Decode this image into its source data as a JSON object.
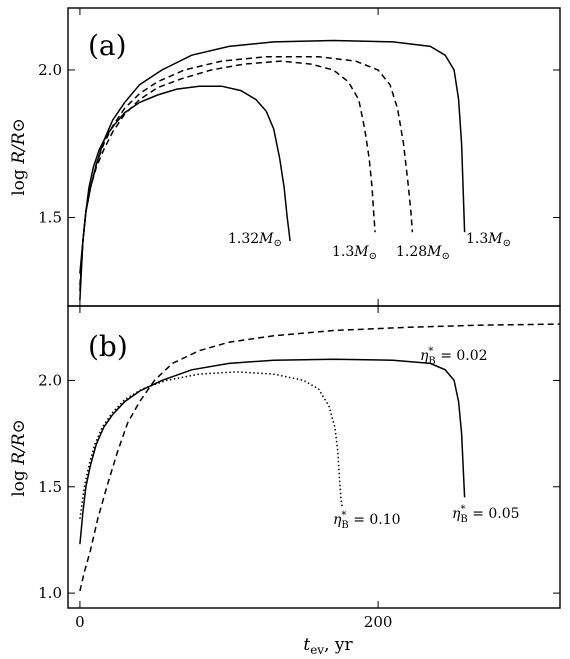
{
  "chart_data": [
    {
      "panel": "(a)",
      "type": "line",
      "ylabel": "log R/R⊙",
      "ylim": [
        1.2,
        2.21
      ],
      "yticks": [
        1.5,
        2.0
      ],
      "ytick_labels": [
        "1.5",
        "2.0"
      ],
      "xlim": [
        -8,
        322
      ],
      "series": [
        {
          "name": "1.32M⊙",
          "style": "solid",
          "points": [
            [
              0,
              1.22
            ],
            [
              1,
              1.32
            ],
            [
              2,
              1.42
            ],
            [
              4,
              1.52
            ],
            [
              6,
              1.6
            ],
            [
              9,
              1.67
            ],
            [
              13,
              1.73
            ],
            [
              18,
              1.78
            ],
            [
              24,
              1.82
            ],
            [
              30,
              1.855
            ],
            [
              40,
              1.89
            ],
            [
              52,
              1.915
            ],
            [
              65,
              1.935
            ],
            [
              80,
              1.945
            ],
            [
              95,
              1.945
            ],
            [
              108,
              1.93
            ],
            [
              118,
              1.9
            ],
            [
              125,
              1.86
            ],
            [
              130,
              1.8
            ],
            [
              134,
              1.7
            ],
            [
              137,
              1.6
            ],
            [
              139,
              1.5
            ],
            [
              140,
              1.46
            ],
            [
              141,
              1.42
            ]
          ]
        },
        {
          "name": "1.3M⊙",
          "style": "dashed",
          "points": [
            [
              0,
              1.25
            ],
            [
              2,
              1.42
            ],
            [
              4,
              1.52
            ],
            [
              7,
              1.6
            ],
            [
              11,
              1.67
            ],
            [
              16,
              1.73
            ],
            [
              22,
              1.79
            ],
            [
              30,
              1.85
            ],
            [
              40,
              1.9
            ],
            [
              52,
              1.94
            ],
            [
              68,
              1.97
            ],
            [
              88,
              2.0
            ],
            [
              110,
              2.02
            ],
            [
              135,
              2.03
            ],
            [
              155,
              2.02
            ],
            [
              170,
              2.0
            ],
            [
              180,
              1.96
            ],
            [
              187,
              1.9
            ],
            [
              191,
              1.8
            ],
            [
              194,
              1.7
            ],
            [
              196,
              1.6
            ],
            [
              197,
              1.52
            ],
            [
              198,
              1.45
            ]
          ]
        },
        {
          "name": "1.28M⊙",
          "style": "dashed",
          "points": [
            [
              0,
              1.27
            ],
            [
              2,
              1.42
            ],
            [
              4,
              1.52
            ],
            [
              7,
              1.6
            ],
            [
              11,
              1.68
            ],
            [
              16,
              1.75
            ],
            [
              22,
              1.81
            ],
            [
              30,
              1.87
            ],
            [
              40,
              1.92
            ],
            [
              52,
              1.96
            ],
            [
              70,
              2.0
            ],
            [
              95,
              2.03
            ],
            [
              125,
              2.045
            ],
            [
              160,
              2.045
            ],
            [
              185,
              2.03
            ],
            [
              200,
              2.0
            ],
            [
              208,
              1.95
            ],
            [
              213,
              1.87
            ],
            [
              217,
              1.75
            ],
            [
              220,
              1.62
            ],
            [
              222,
              1.52
            ],
            [
              223,
              1.45
            ]
          ]
        },
        {
          "name": "1.3M⊙",
          "style": "solid",
          "points": [
            [
              0,
              1.31
            ],
            [
              2,
              1.42
            ],
            [
              4,
              1.52
            ],
            [
              7,
              1.6
            ],
            [
              11,
              1.68
            ],
            [
              16,
              1.76
            ],
            [
              22,
              1.83
            ],
            [
              30,
              1.89
            ],
            [
              40,
              1.95
            ],
            [
              55,
              2.0
            ],
            [
              75,
              2.05
            ],
            [
              100,
              2.08
            ],
            [
              130,
              2.095
            ],
            [
              170,
              2.1
            ],
            [
              210,
              2.095
            ],
            [
              235,
              2.08
            ],
            [
              245,
              2.05
            ],
            [
              251,
              2.0
            ],
            [
              254,
              1.9
            ],
            [
              256,
              1.75
            ],
            [
              257,
              1.6
            ],
            [
              258,
              1.45
            ]
          ]
        }
      ]
    },
    {
      "panel": "(b)",
      "type": "line",
      "ylabel": "log R/R⊙",
      "xlabel": "tev, yr",
      "ylim": [
        0.93,
        2.35
      ],
      "yticks": [
        1.0,
        1.5,
        2.0
      ],
      "ytick_labels": [
        "1.0",
        "1.5",
        "2.0"
      ],
      "xlim": [
        -8,
        322
      ],
      "xticks": [
        0,
        200
      ],
      "xtick_labels": [
        "0",
        "200"
      ],
      "series": [
        {
          "name": "η*B = 0.02",
          "style": "dashed",
          "points": [
            [
              0,
              1.01
            ],
            [
              3,
              1.1
            ],
            [
              7,
              1.2
            ],
            [
              12,
              1.35
            ],
            [
              18,
              1.5
            ],
            [
              25,
              1.66
            ],
            [
              32,
              1.8
            ],
            [
              40,
              1.9
            ],
            [
              50,
              2.0
            ],
            [
              62,
              2.08
            ],
            [
              80,
              2.14
            ],
            [
              100,
              2.18
            ],
            [
              130,
              2.21
            ],
            [
              170,
              2.235
            ],
            [
              220,
              2.25
            ],
            [
              270,
              2.26
            ],
            [
              322,
              2.265
            ]
          ]
        },
        {
          "name": "η*B = 0.05",
          "style": "solid",
          "points": [
            [
              0,
              1.23
            ],
            [
              2,
              1.38
            ],
            [
              4,
              1.5
            ],
            [
              7,
              1.6
            ],
            [
              11,
              1.7
            ],
            [
              16,
              1.78
            ],
            [
              22,
              1.84
            ],
            [
              30,
              1.9
            ],
            [
              40,
              1.95
            ],
            [
              55,
              2.0
            ],
            [
              75,
              2.05
            ],
            [
              100,
              2.08
            ],
            [
              130,
              2.095
            ],
            [
              170,
              2.1
            ],
            [
              210,
              2.095
            ],
            [
              235,
              2.08
            ],
            [
              245,
              2.05
            ],
            [
              251,
              2.0
            ],
            [
              254,
              1.9
            ],
            [
              256,
              1.75
            ],
            [
              257,
              1.6
            ],
            [
              258,
              1.45
            ]
          ]
        },
        {
          "name": "η*B = 0.10",
          "style": "dotted",
          "points": [
            [
              0,
              1.35
            ],
            [
              3,
              1.5
            ],
            [
              6,
              1.6
            ],
            [
              10,
              1.7
            ],
            [
              15,
              1.78
            ],
            [
              22,
              1.85
            ],
            [
              30,
              1.91
            ],
            [
              42,
              1.96
            ],
            [
              58,
              2.0
            ],
            [
              80,
              2.03
            ],
            [
              105,
              2.04
            ],
            [
              130,
              2.03
            ],
            [
              150,
              2.0
            ],
            [
              160,
              1.96
            ],
            [
              167,
              1.88
            ],
            [
              171,
              1.78
            ],
            [
              173,
              1.66
            ],
            [
              174,
              1.55
            ],
            [
              175,
              1.45
            ],
            [
              176,
              1.4
            ]
          ]
        }
      ]
    }
  ],
  "annotations": {
    "a_label_1": "1.32M⊙",
    "a_label_2": "1.3M⊙",
    "a_label_3": "1.28M⊙",
    "a_label_4": "1.3M⊙",
    "b_label_1": "η*B = 0.02",
    "b_label_2": "η*B = 0.10",
    "b_label_3": "η*B = 0.05"
  }
}
